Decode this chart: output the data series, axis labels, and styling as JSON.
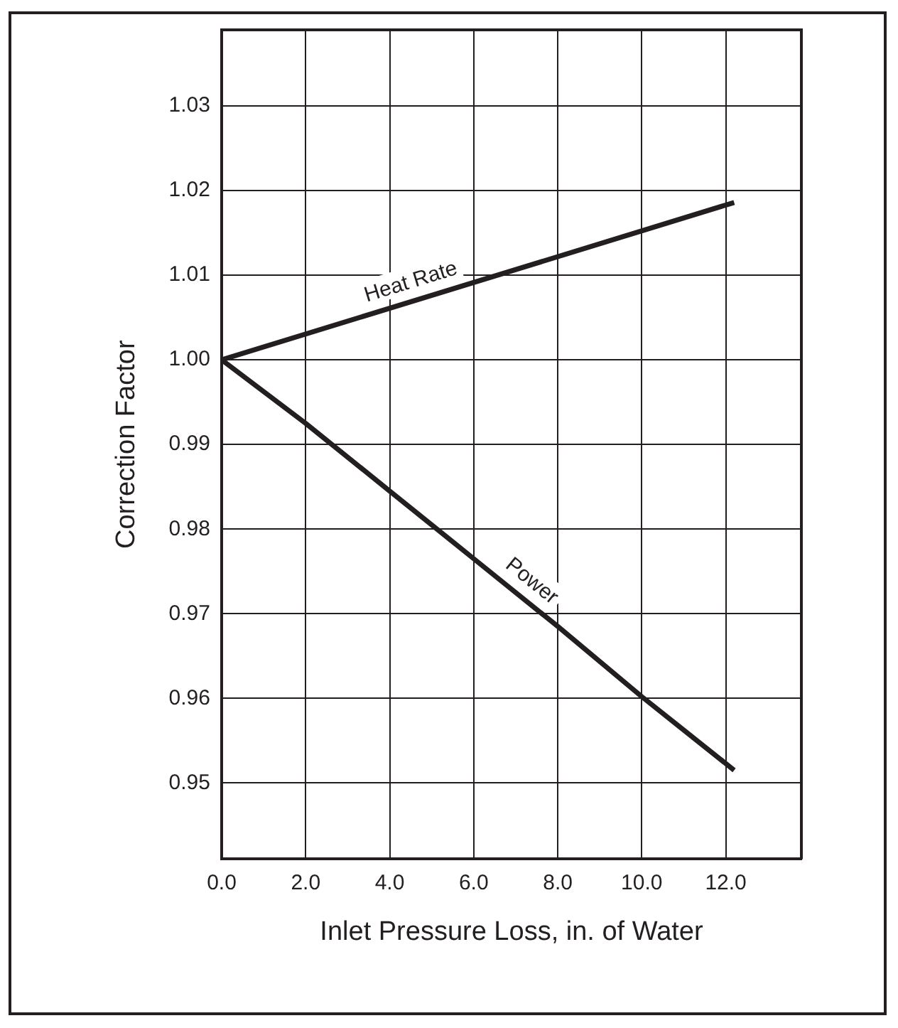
{
  "chart_data": {
    "type": "line",
    "xlabel": "Inlet Pressure Loss, in. of Water",
    "ylabel": "Correction Factor",
    "xlim": [
      0,
      13.8
    ],
    "xticks": [
      {
        "value": 0,
        "label": "0.0"
      },
      {
        "value": 2,
        "label": "2.0"
      },
      {
        "value": 4,
        "label": "4.0"
      },
      {
        "value": 6,
        "label": "6.0"
      },
      {
        "value": 8,
        "label": "8.0"
      },
      {
        "value": 10,
        "label": "10.0"
      },
      {
        "value": 12,
        "label": "12.0"
      }
    ],
    "ylim": [
      0.941,
      1.039
    ],
    "yticks": [
      0.95,
      0.96,
      0.97,
      0.98,
      0.99,
      {
        "value": 1,
        "label": "1.00"
      },
      1.01,
      1.02,
      1.03
    ],
    "grid": true,
    "legend": false,
    "marker": "none",
    "line_style": "solid",
    "series": [
      {
        "name": "Heat Rate",
        "color": "#231f20",
        "x": [
          0,
          12.2
        ],
        "values": [
          1.0,
          1.0186
        ]
      },
      {
        "name": "Power",
        "color": "#231f20",
        "x": [
          0,
          2,
          4,
          6,
          8,
          10,
          12.2
        ],
        "values": [
          1.0,
          0.9925,
          0.9845,
          0.9765,
          0.9685,
          0.9602,
          0.9515
        ]
      }
    ]
  }
}
